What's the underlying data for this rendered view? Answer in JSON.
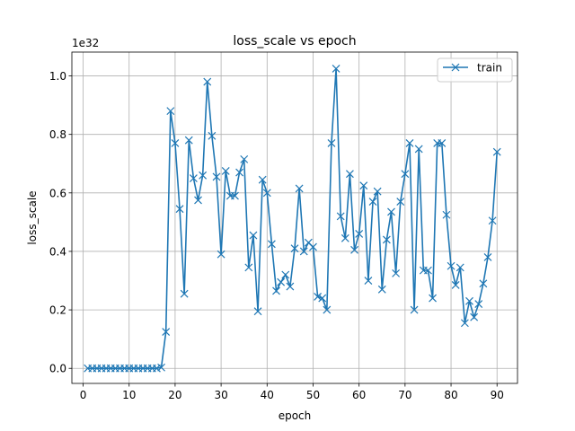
{
  "chart_data": {
    "type": "line",
    "title": "loss_scale vs epoch",
    "xlabel": "epoch",
    "ylabel": "loss_scale",
    "offset_text": "1e32",
    "xlim": [
      -2.45,
      94.45
    ],
    "ylim": [
      -0.0515,
      1.0815
    ],
    "xticks": [
      0,
      10,
      20,
      30,
      40,
      50,
      60,
      70,
      80,
      90
    ],
    "yticks": [
      0.0,
      0.2,
      0.4,
      0.6,
      0.8,
      1.0
    ],
    "ytick_labels": [
      "0.0",
      "0.2",
      "0.4",
      "0.6",
      "0.8",
      "1.0"
    ],
    "grid": true,
    "legend_position": "upper right",
    "series": [
      {
        "name": "train",
        "color": "#1f77b4",
        "marker": "x",
        "x": [
          1,
          2,
          3,
          4,
          5,
          6,
          7,
          8,
          9,
          10,
          11,
          12,
          13,
          14,
          15,
          16,
          17,
          18,
          19,
          20,
          21,
          22,
          23,
          24,
          25,
          26,
          27,
          28,
          29,
          30,
          31,
          32,
          33,
          34,
          35,
          36,
          37,
          38,
          39,
          40,
          41,
          42,
          43,
          44,
          45,
          46,
          47,
          48,
          49,
          50,
          51,
          52,
          53,
          54,
          55,
          56,
          57,
          58,
          59,
          60,
          61,
          62,
          63,
          64,
          65,
          66,
          67,
          68,
          69,
          70,
          71,
          72,
          73,
          74,
          75,
          76,
          77,
          78,
          79,
          80,
          81,
          82,
          83,
          84,
          85,
          86,
          87,
          88,
          89,
          90
        ],
        "y": [
          0,
          0,
          0,
          0,
          0,
          0,
          0,
          0,
          0,
          0,
          0,
          0,
          0,
          0,
          0,
          0,
          0.003,
          0.125,
          0.88,
          0.77,
          0.545,
          0.255,
          0.78,
          0.65,
          0.575,
          0.66,
          0.98,
          0.795,
          0.655,
          0.39,
          0.675,
          0.59,
          0.59,
          0.67,
          0.715,
          0.345,
          0.455,
          0.195,
          0.645,
          0.6,
          0.425,
          0.265,
          0.295,
          0.32,
          0.28,
          0.41,
          0.615,
          0.4,
          0.43,
          0.415,
          0.245,
          0.24,
          0.2,
          0.77,
          1.025,
          0.52,
          0.445,
          0.665,
          0.405,
          0.46,
          0.625,
          0.3,
          0.57,
          0.605,
          0.27,
          0.44,
          0.535,
          0.325,
          0.57,
          0.665,
          0.77,
          0.2,
          0.75,
          0.335,
          0.335,
          0.24,
          0.77,
          0.77,
          0.525,
          0.35,
          0.285,
          0.345,
          0.155,
          0.23,
          0.175,
          0.22,
          0.29,
          0.38,
          0.505,
          0.74
        ]
      }
    ]
  }
}
